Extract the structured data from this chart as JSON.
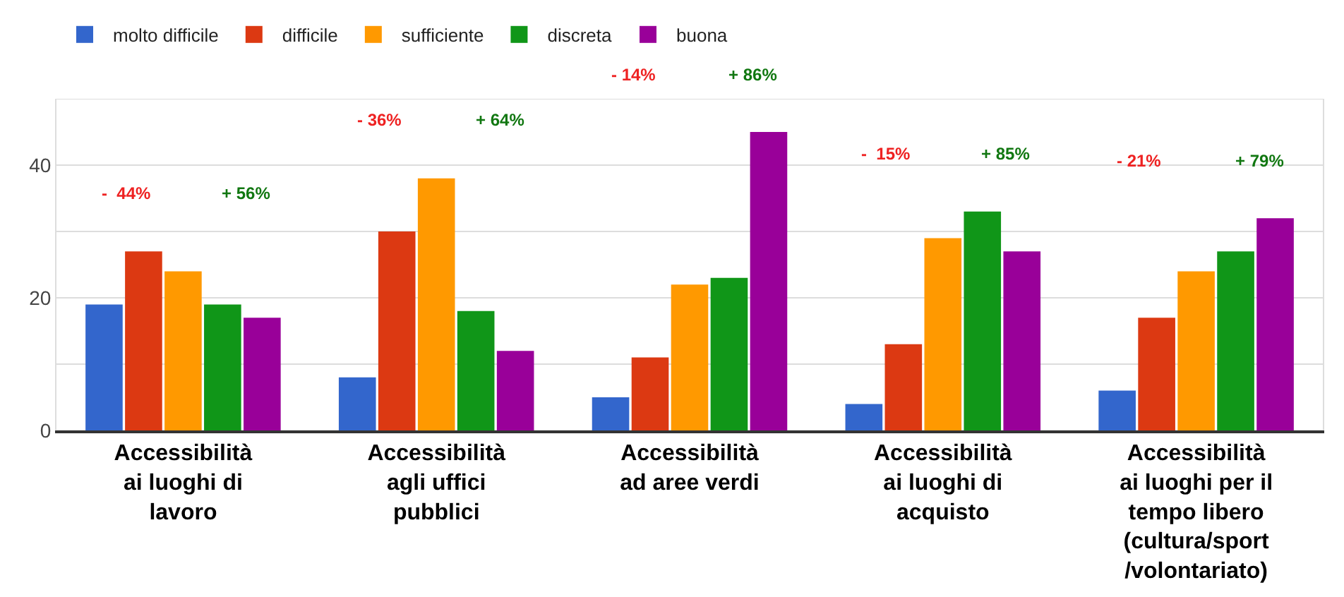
{
  "chart_data": {
    "type": "bar",
    "categories": [
      "Accessibilità\nai luoghi di\nlavoro",
      "Accessibilità\nagli uffici\npubblici",
      "Accessibilità\nad aree verdi",
      "Accessibilità\nai luoghi di\nacquisto",
      "Accessibilità\nai luoghi per il\ntempo libero\n(cultura/sport\n/volontariato)"
    ],
    "series": [
      {
        "name": "molto difficile",
        "color": "#3366cc",
        "values": [
          19,
          8,
          5,
          4,
          6
        ]
      },
      {
        "name": "difficile",
        "color": "#dc3912",
        "values": [
          27,
          30,
          11,
          13,
          17
        ]
      },
      {
        "name": "sufficiente",
        "color": "#ff9900",
        "values": [
          24,
          38,
          22,
          29,
          24
        ]
      },
      {
        "name": "discreta",
        "color": "#109618",
        "values": [
          19,
          18,
          23,
          33,
          27
        ]
      },
      {
        "name": "buona",
        "color": "#990099",
        "values": [
          17,
          12,
          45,
          27,
          32
        ]
      }
    ],
    "ylim": [
      0,
      50
    ],
    "yticks": [
      0,
      {
        "value": 10,
        "label": null
      },
      20,
      {
        "value": 30,
        "label": null
      },
      40,
      {
        "value": 50,
        "label": null
      }
    ],
    "grid": "y",
    "legend": "top",
    "annotations": [
      "-  44%",
      "+ 56%",
      "- 36%",
      "+ 64%",
      "- 14%",
      "+ 86%",
      "-  15%",
      "+ 85%",
      "- 21%",
      "+ 79%"
    ]
  }
}
